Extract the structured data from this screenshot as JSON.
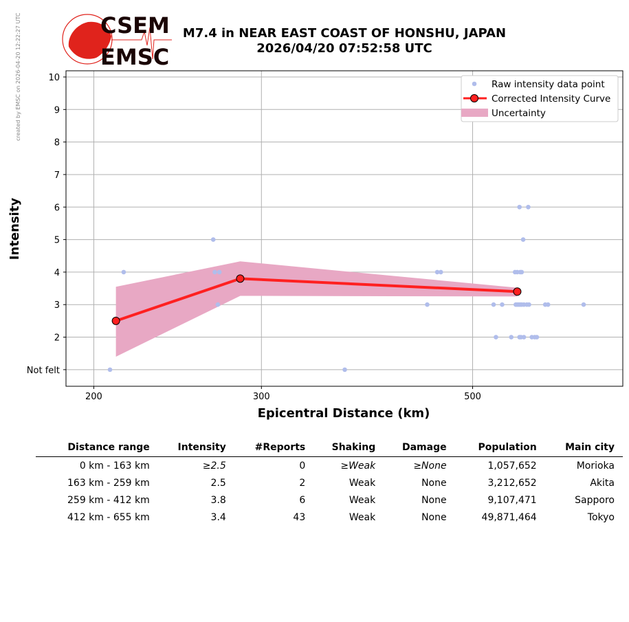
{
  "credit": "created by EMSC on 2026-04-20 12:22:27 UTC",
  "logo": {
    "top": "CSEM",
    "bottom": "EMSC"
  },
  "title_line1": "M7.4 in NEAR EAST COAST OF HONSHU, JAPAN",
  "title_line2": "2026/04/20 07:52:58 UTC",
  "colors": {
    "raw": "#b0bdeb",
    "curve": "#ff2020",
    "uncertainty": "#e8a8c4"
  },
  "chart_data": {
    "type": "scatter",
    "xlabel": "Epicentral Distance (km)",
    "ylabel": "Intensity",
    "xscale": "log",
    "xlim": [
      187,
      719
    ],
    "ylim": [
      0.49,
      10.19
    ],
    "xticks": [
      {
        "v": 200,
        "label": "200"
      },
      {
        "v": 300,
        "label": "300"
      },
      {
        "v": 500,
        "label": "500"
      }
    ],
    "yticks": [
      {
        "v": 1,
        "label": "Not felt"
      },
      {
        "v": 2,
        "label": "2"
      },
      {
        "v": 3,
        "label": "3"
      },
      {
        "v": 4,
        "label": "4"
      },
      {
        "v": 5,
        "label": "5"
      },
      {
        "v": 6,
        "label": "6"
      },
      {
        "v": 7,
        "label": "7"
      },
      {
        "v": 8,
        "label": "8"
      },
      {
        "v": 9,
        "label": "9"
      },
      {
        "v": 10,
        "label": "10"
      }
    ],
    "grid": true,
    "legend_position": "top-right",
    "legend": [
      "Raw intensity data point",
      "Corrected Intensity Curve",
      "Uncertainty"
    ],
    "raw_points": [
      [
        208,
        1
      ],
      [
        215,
        4
      ],
      [
        267,
        5
      ],
      [
        268,
        4
      ],
      [
        271,
        4
      ],
      [
        270,
        3
      ],
      [
        367,
        1
      ],
      [
        448,
        3
      ],
      [
        459,
        4
      ],
      [
        463,
        4
      ],
      [
        526,
        3
      ],
      [
        537,
        3
      ],
      [
        529,
        2
      ],
      [
        549,
        2
      ],
      [
        554,
        4
      ],
      [
        557,
        4
      ],
      [
        561,
        4
      ],
      [
        563,
        4
      ],
      [
        560,
        6
      ],
      [
        572,
        6
      ],
      [
        565,
        5
      ],
      [
        555,
        3
      ],
      [
        557,
        3
      ],
      [
        559,
        3
      ],
      [
        561,
        3
      ],
      [
        563,
        3
      ],
      [
        566,
        3
      ],
      [
        570,
        3
      ],
      [
        573,
        3
      ],
      [
        596,
        3
      ],
      [
        600,
        3
      ],
      [
        654,
        3
      ],
      [
        560,
        2
      ],
      [
        562,
        2
      ],
      [
        566,
        2
      ],
      [
        577,
        2
      ],
      [
        581,
        2
      ],
      [
        584,
        2
      ]
    ],
    "curve": [
      {
        "x": 211,
        "y": 2.5
      },
      {
        "x": 285,
        "y": 3.8
      },
      {
        "x": 557,
        "y": 3.4
      }
    ],
    "uncertainty": [
      {
        "x": 211,
        "low": 1.4,
        "high": 3.55
      },
      {
        "x": 285,
        "low": 3.27,
        "high": 4.33
      },
      {
        "x": 557,
        "low": 3.25,
        "high": 3.52
      }
    ]
  },
  "table": {
    "headers": [
      "Distance range",
      "Intensity",
      "#Reports",
      "Shaking",
      "Damage",
      "Population",
      "Main city"
    ],
    "rows": [
      [
        "0 km -  163 km",
        "≥2.5",
        "0",
        "≥Weak",
        "≥None",
        "1,057,652",
        "Morioka"
      ],
      [
        "163 km -  259 km",
        "2.5",
        "2",
        "Weak",
        "None",
        "3,212,652",
        "Akita"
      ],
      [
        "259 km -  412 km",
        "3.8",
        "6",
        "Weak",
        "None",
        "9,107,471",
        "Sapporo"
      ],
      [
        "412 km -  655 km",
        "3.4",
        "43",
        "Weak",
        "None",
        "49,871,464",
        "Tokyo"
      ]
    ]
  }
}
